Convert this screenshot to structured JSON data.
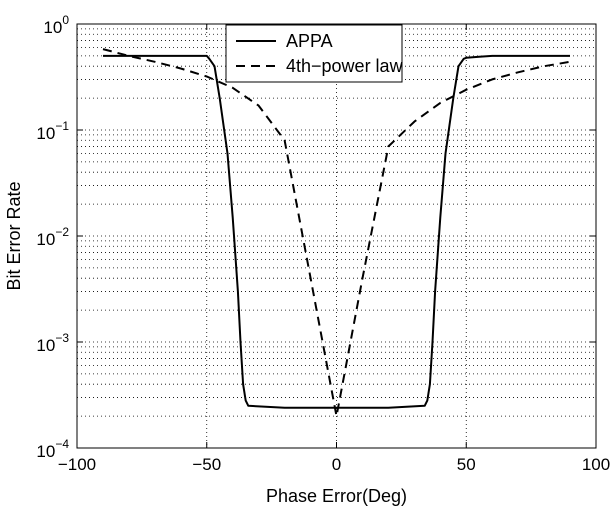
{
  "chart_data": {
    "type": "line",
    "title": "",
    "xlabel": "Phase Error(Deg)",
    "ylabel": "Bit Error Rate",
    "xlim": [
      -100,
      100
    ],
    "ylim": [
      0.0001,
      1
    ],
    "yscale": "log",
    "grid": true,
    "legend_position": "top-center",
    "x_ticks": [
      -100,
      -50,
      0,
      50,
      100
    ],
    "x_tick_labels": [
      "−100",
      "−50",
      "0",
      "50",
      "100"
    ],
    "y_ticks": [
      0.0001,
      0.001,
      0.01,
      0.1,
      1
    ],
    "y_tick_labels": [
      {
        "base": "10",
        "exp": "−4"
      },
      {
        "base": "10",
        "exp": "−3"
      },
      {
        "base": "10",
        "exp": "−2"
      },
      {
        "base": "10",
        "exp": "−1"
      },
      {
        "base": "10",
        "exp": "0"
      }
    ],
    "series": [
      {
        "name": "APPA",
        "style": "solid",
        "color": "#000000",
        "x": [
          -90,
          -50,
          -49,
          -47,
          -45,
          -42,
          -40,
          -38,
          -37,
          -36,
          -35,
          -34,
          -20,
          0,
          20,
          34,
          35,
          36,
          37,
          38,
          40,
          42,
          45,
          47,
          49,
          50,
          55,
          60,
          90
        ],
        "y": [
          0.5,
          0.5,
          0.47,
          0.4,
          0.2,
          0.06,
          0.015,
          0.003,
          0.001,
          0.0004,
          0.00028,
          0.00025,
          0.00024,
          0.00024,
          0.00024,
          0.00025,
          0.00028,
          0.0004,
          0.001,
          0.003,
          0.015,
          0.06,
          0.2,
          0.4,
          0.47,
          0.48,
          0.49,
          0.5,
          0.5
        ]
      },
      {
        "name": "4th−power law",
        "style": "dashed",
        "color": "#000000",
        "x": [
          -90,
          -80,
          -70,
          -60,
          -50,
          -40,
          -30,
          -20,
          -10,
          0,
          10,
          20,
          30,
          40,
          50,
          60,
          70,
          80,
          90
        ],
        "y": [
          0.58,
          0.5,
          0.44,
          0.38,
          0.32,
          0.25,
          0.17,
          0.08,
          0.004,
          0.0002,
          0.004,
          0.07,
          0.12,
          0.18,
          0.24,
          0.3,
          0.35,
          0.4,
          0.44
        ]
      }
    ]
  }
}
